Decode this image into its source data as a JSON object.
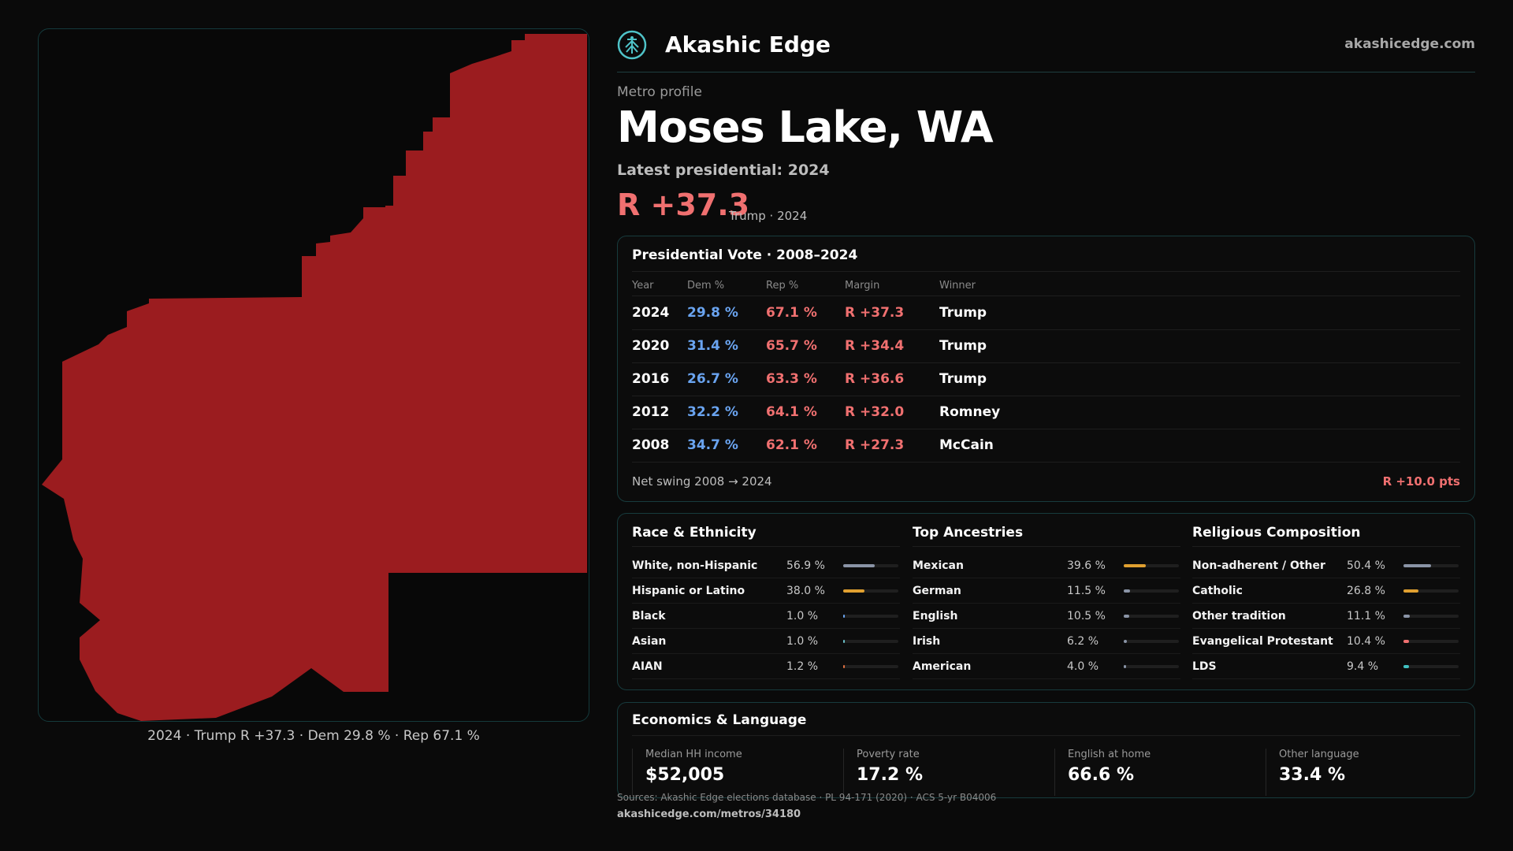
{
  "header": {
    "brand": "Akashic Edge",
    "domain": "akashicedge.com",
    "logo_icon": "tree-of-life-icon"
  },
  "profile": {
    "eyebrow": "Metro profile",
    "title": "Moses Lake, WA",
    "subtitle": "Latest presidential: 2024",
    "margin": "R +37.3",
    "margin_note": "Trump · 2024"
  },
  "map": {
    "caption": "2024 · Trump R +37.3 · Dem 29.8 % · Rep 67.1 %",
    "fill_color": "#9b1c1f"
  },
  "vote": {
    "title": "Presidential Vote · 2008–2024",
    "headers": {
      "year": "Year",
      "dem": "Dem %",
      "rep": "Rep %",
      "margin": "Margin",
      "winner": "Winner"
    },
    "rows": [
      {
        "year": "2024",
        "dem": "29.8 %",
        "rep": "67.1 %",
        "margin": "R +37.3",
        "winner": "Trump"
      },
      {
        "year": "2020",
        "dem": "31.4 %",
        "rep": "65.7 %",
        "margin": "R +34.4",
        "winner": "Trump"
      },
      {
        "year": "2016",
        "dem": "26.7 %",
        "rep": "63.3 %",
        "margin": "R +36.6",
        "winner": "Trump"
      },
      {
        "year": "2012",
        "dem": "32.2 %",
        "rep": "64.1 %",
        "margin": "R +32.0",
        "winner": "Romney"
      },
      {
        "year": "2008",
        "dem": "34.7 %",
        "rep": "62.1 %",
        "margin": "R +27.3",
        "winner": "McCain"
      }
    ],
    "swing_label": "Net swing 2008 → 2024",
    "swing_value": "R +10.0 pts"
  },
  "race": {
    "title": "Race & Ethnicity",
    "rows": [
      {
        "label": "White, non-Hispanic",
        "value": "56.9 %",
        "share": 0.569,
        "color": "#8a94a6"
      },
      {
        "label": "Hispanic or Latino",
        "value": "38.0 %",
        "share": 0.38,
        "color": "#e0a030"
      },
      {
        "label": "Black",
        "value": "1.0 %",
        "share": 0.01,
        "color": "#6aa4f0"
      },
      {
        "label": "Asian",
        "value": "1.0 %",
        "share": 0.01,
        "color": "#6ac0c8"
      },
      {
        "label": "AIAN",
        "value": "1.2 %",
        "share": 0.012,
        "color": "#e07040"
      }
    ]
  },
  "ancestry": {
    "title": "Top Ancestries",
    "rows": [
      {
        "label": "Mexican",
        "value": "39.6 %",
        "share": 0.396,
        "color": "#e0a030"
      },
      {
        "label": "German",
        "value": "11.5 %",
        "share": 0.115,
        "color": "#8a94a6"
      },
      {
        "label": "English",
        "value": "10.5 %",
        "share": 0.105,
        "color": "#8a94a6"
      },
      {
        "label": "Irish",
        "value": "6.2 %",
        "share": 0.062,
        "color": "#8a94a6"
      },
      {
        "label": "American",
        "value": "4.0 %",
        "share": 0.04,
        "color": "#8a94a6"
      }
    ]
  },
  "religion": {
    "title": "Religious Composition",
    "rows": [
      {
        "label": "Non-adherent / Other",
        "value": "50.4 %",
        "share": 0.504,
        "color": "#8a94a6"
      },
      {
        "label": "Catholic",
        "value": "26.8 %",
        "share": 0.268,
        "color": "#e0a030"
      },
      {
        "label": "Other tradition",
        "value": "11.1 %",
        "share": 0.111,
        "color": "#8a94a6"
      },
      {
        "label": "Evangelical Protestant",
        "value": "10.4 %",
        "share": 0.104,
        "color": "#f07070"
      },
      {
        "label": "LDS",
        "value": "9.4 %",
        "share": 0.094,
        "color": "#40c0c0"
      }
    ]
  },
  "economics": {
    "title": "Economics & Language",
    "stats": [
      {
        "label": "Median HH income",
        "value": "$52,005"
      },
      {
        "label": "Poverty rate",
        "value": "17.2 %"
      },
      {
        "label": "English at home",
        "value": "66.6 %"
      },
      {
        "label": "Other language",
        "value": "33.4 %"
      }
    ]
  },
  "footer": {
    "sources": "Sources: Akashic Edge elections database · PL 94-171 (2020) · ACS 5-yr B04006",
    "url": "akashicedge.com/metros/34180"
  }
}
